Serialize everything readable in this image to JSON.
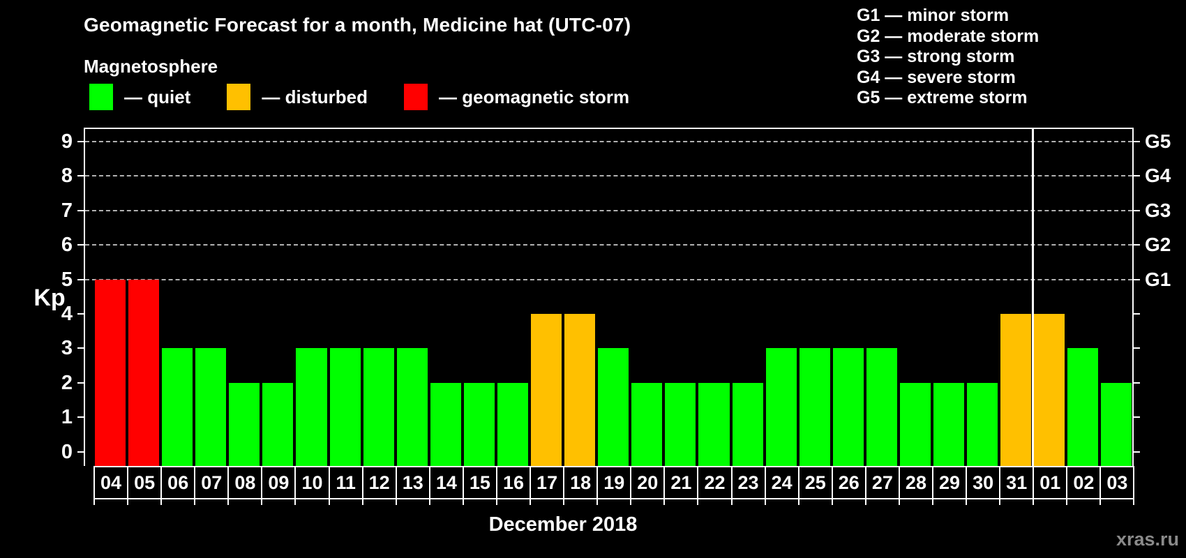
{
  "title": "Geomagnetic Forecast for a month, Medicine hat (UTC-07)",
  "subtitle": "Magnetosphere",
  "legend": {
    "items": [
      {
        "status": "quiet",
        "label": "— quiet",
        "color": "#00ff00"
      },
      {
        "status": "disturbed",
        "label": "— disturbed",
        "color": "#ffc000"
      },
      {
        "status": "storm",
        "label": "— geomagnetic storm",
        "color": "#ff0000"
      }
    ]
  },
  "g_scale_legend": [
    "G1 — minor storm",
    "G2 — moderate storm",
    "G3 — strong storm",
    "G4 — severe storm",
    "G5 — extreme storm"
  ],
  "watermark": "xras.ru",
  "chart_data": {
    "type": "bar",
    "title": "Geomagnetic Forecast for a month, Medicine hat (UTC-07)",
    "xlabel": "December 2018",
    "ylabel": "Kp",
    "ylim": [
      0,
      9
    ],
    "yticks": [
      0,
      1,
      2,
      3,
      4,
      5,
      6,
      7,
      8,
      9
    ],
    "grid": "horizontal dashed lines at Kp 5,6,7,8,9",
    "legend_position": "top-left and top-right",
    "right_axis_labels": {
      "5": "G1",
      "6": "G2",
      "7": "G3",
      "8": "G4",
      "9": "G5"
    },
    "categories": [
      "04",
      "05",
      "06",
      "07",
      "08",
      "09",
      "10",
      "11",
      "12",
      "13",
      "14",
      "15",
      "16",
      "17",
      "18",
      "19",
      "20",
      "21",
      "22",
      "23",
      "24",
      "25",
      "26",
      "27",
      "28",
      "29",
      "30",
      "31",
      "01",
      "02",
      "03"
    ],
    "values": [
      5,
      5,
      3,
      3,
      2,
      2,
      3,
      3,
      3,
      3,
      2,
      2,
      2,
      4,
      4,
      3,
      2,
      2,
      2,
      2,
      3,
      3,
      3,
      3,
      2,
      2,
      2,
      4,
      4,
      3,
      2
    ],
    "statuses": [
      "storm",
      "storm",
      "quiet",
      "quiet",
      "quiet",
      "quiet",
      "quiet",
      "quiet",
      "quiet",
      "quiet",
      "quiet",
      "quiet",
      "quiet",
      "disturbed",
      "disturbed",
      "quiet",
      "quiet",
      "quiet",
      "quiet",
      "quiet",
      "quiet",
      "quiet",
      "quiet",
      "quiet",
      "quiet",
      "quiet",
      "quiet",
      "disturbed",
      "disturbed",
      "quiet",
      "quiet"
    ],
    "colors": {
      "quiet": "#00ff00",
      "disturbed": "#ffc000",
      "storm": "#ff0000"
    },
    "year_divider_after_index": 27
  }
}
